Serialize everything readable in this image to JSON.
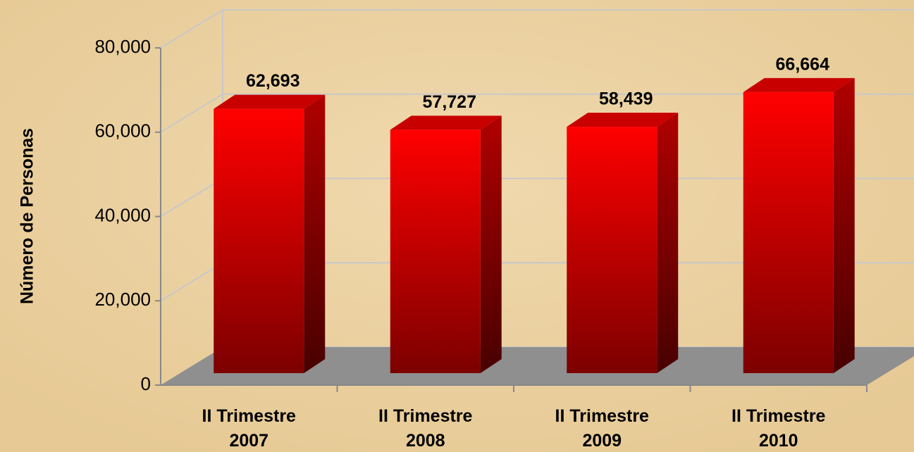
{
  "chart_data": {
    "type": "bar3d",
    "y_label": "Número de Personas",
    "categories": [
      "II Trimestre 2007",
      "II Trimestre 2008",
      "II Trimestre 2009",
      "II Trimestre 2010"
    ],
    "values": [
      62693,
      57727,
      58439,
      66664
    ],
    "value_labels": [
      "62,693",
      "57,727",
      "58,439",
      "66,664"
    ],
    "color": "#ff0000",
    "ylim": [
      0,
      80000
    ],
    "yticks": [
      0,
      {
        "value": 20000,
        "label": "20,000"
      },
      {
        "value": 40000,
        "label": "40,000"
      },
      {
        "value": 60000,
        "label": "60,000"
      },
      {
        "value": 80000,
        "label": "80,000"
      }
    ],
    "grid": true
  }
}
